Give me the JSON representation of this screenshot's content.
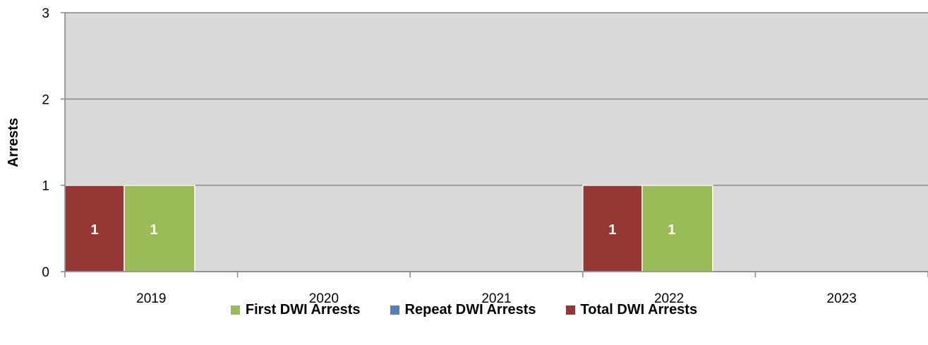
{
  "chart_data": {
    "type": "bar",
    "ylabel": "Arrests",
    "xlabel": "",
    "ylim": [
      0,
      3
    ],
    "yticks": [
      "0",
      "1",
      "2",
      "3"
    ],
    "categories": [
      "2019",
      "2020",
      "2021",
      "2022",
      "2023"
    ],
    "series": [
      {
        "name": "Total DWI Arrests",
        "color": "#953735",
        "values": [
          1,
          0,
          0,
          1,
          0
        ]
      },
      {
        "name": "Repeat DWI Arrests",
        "color": "#4F81BD",
        "values": [
          0,
          0,
          0,
          0,
          0
        ]
      },
      {
        "name": "First DWI Arrests",
        "color": "#9BBB59",
        "values": [
          1,
          0,
          0,
          1,
          0
        ]
      }
    ],
    "data_labels": [
      "1",
      "1",
      "1",
      "1"
    ],
    "grid": true,
    "legend": {
      "position": "bottom",
      "entries": [
        {
          "label": "First DWI Arrests",
          "color": "#9BBB59"
        },
        {
          "label": "Repeat DWI Arrests",
          "color": "#4F81BD"
        },
        {
          "label": "Total DWI Arrests",
          "color": "#953735"
        }
      ]
    },
    "plot_background": "#D9D9D9"
  }
}
